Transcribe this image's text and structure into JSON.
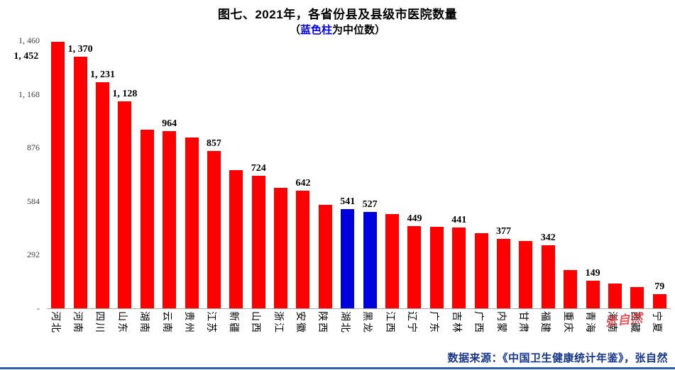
{
  "title": "图七、2021年，各省份县及县级市医院数量",
  "subtitle": {
    "open": "（",
    "highlight": "蓝色柱",
    "rest": "为中位数）"
  },
  "source_note": "数据来源：《中国卫生健康统计年鉴》，张自然",
  "watermark": "张自然",
  "colors": {
    "bar": "#FF0000",
    "median_bar": "#0000DD",
    "accent_blue": "#0000EE",
    "source_text": "#16368C",
    "bottom_rule": "#2F5FA7",
    "watermark": "#E0393E"
  },
  "chart_data": {
    "type": "bar",
    "title": "图七、2021年，各省份县及县级市医院数量",
    "subtitle": "（蓝色柱为中位数）",
    "xlabel": "",
    "ylabel": "",
    "ylim": [
      0,
      1460
    ],
    "grid": false,
    "legend": "none",
    "categories": [
      "河北",
      "河南",
      "四川",
      "山东",
      "湖南",
      "云南",
      "贵州",
      "江苏",
      "新疆",
      "山西",
      "浙江",
      "安徽",
      "陕西",
      "湖北",
      "黑龙",
      "江西",
      "辽宁",
      "广东",
      "吉林",
      "广西",
      "内蒙",
      "甘肃",
      "福建",
      "重庆",
      "青海",
      "海南",
      "西藏",
      "宁夏"
    ],
    "values": [
      1452,
      1370,
      1231,
      1128,
      975,
      964,
      930,
      857,
      755,
      724,
      655,
      642,
      565,
      541,
      527,
      515,
      449,
      445,
      441,
      408,
      377,
      368,
      342,
      210,
      149,
      135,
      115,
      79
    ],
    "data_labels": [
      "1, 452",
      "1, 370",
      "1, 231",
      "1, 128",
      null,
      "964",
      null,
      "857",
      null,
      "724",
      null,
      "642",
      null,
      "541",
      "527",
      null,
      "449",
      null,
      "441",
      null,
      "377",
      null,
      "342",
      null,
      "149",
      null,
      null,
      "79"
    ],
    "median_indices": [
      13,
      14
    ],
    "yticks": [
      {
        "value": 1460,
        "label": "1, 460"
      },
      {
        "value": 1168,
        "label": "1, 168"
      },
      {
        "value": 876,
        "label": "876"
      },
      {
        "value": 584,
        "label": "584"
      },
      {
        "value": 292,
        "label": "292"
      },
      {
        "value": 0,
        "label": "-"
      }
    ]
  }
}
